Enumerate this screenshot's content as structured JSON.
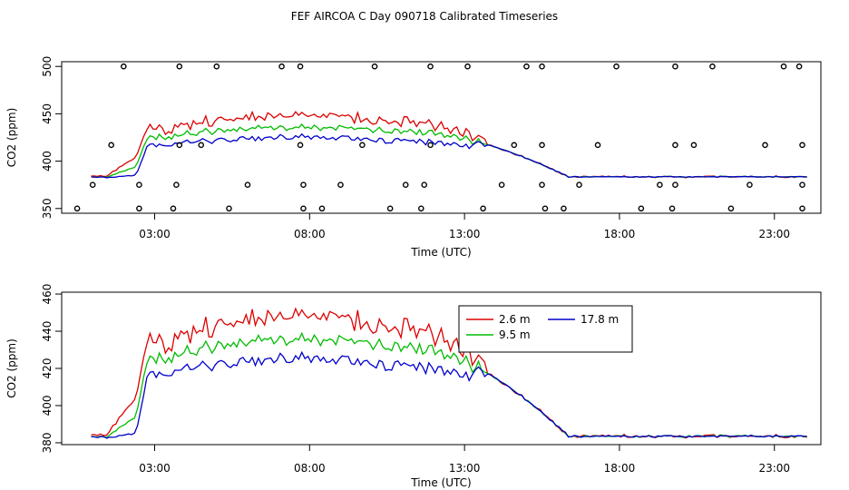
{
  "figure": {
    "title": "FEF AIRCOA C  Day 090718  Calibrated Timeseries"
  },
  "chart_data": [
    {
      "type": "line",
      "title": "",
      "xlabel": "Time (UTC)",
      "ylabel": "CO2 (ppm)",
      "xlim": [
        0,
        24.5
      ],
      "ylim": [
        345,
        505
      ],
      "xticks": [
        3,
        8,
        13,
        18,
        23
      ],
      "xtick_labels": [
        "03:00",
        "08:00",
        "13:00",
        "18:00",
        "23:00"
      ],
      "yticks": [
        350,
        400,
        450,
        500
      ],
      "ytick_labels": [
        "350",
        "400",
        "450",
        "500"
      ],
      "series": [
        {
          "name": "2.6 m",
          "color": "#dd0000"
        },
        {
          "name": "9.5 m",
          "color": "#00bb00"
        },
        {
          "name": "17.8 m",
          "color": "#0000cc"
        }
      ],
      "calibration_points": {
        "500": [
          2.0,
          3.8,
          5.0,
          7.1,
          7.7,
          10.1,
          11.9,
          13.1,
          15.0,
          15.5,
          17.9,
          19.8,
          21.0,
          23.3,
          23.8
        ],
        "417": [
          1.6,
          3.8,
          4.5,
          7.7,
          9.7,
          11.9,
          14.6,
          15.5,
          17.3,
          19.8,
          20.4,
          22.7,
          23.9
        ],
        "375": [
          1.0,
          2.5,
          3.7,
          6.0,
          7.8,
          9.0,
          11.1,
          11.7,
          14.2,
          15.5,
          16.7,
          19.3,
          19.8,
          22.2,
          23.9
        ],
        "350": [
          0.5,
          2.5,
          3.6,
          5.4,
          7.8,
          8.4,
          10.6,
          11.6,
          13.6,
          15.6,
          16.2,
          18.7,
          19.7,
          21.6,
          23.9
        ]
      }
    },
    {
      "type": "line",
      "title": "",
      "xlabel": "Time (UTC)",
      "ylabel": "CO2 (ppm)",
      "xlim": [
        0,
        24.5
      ],
      "ylim": [
        379,
        461
      ],
      "xticks": [
        3,
        8,
        13,
        18,
        23
      ],
      "xtick_labels": [
        "03:00",
        "08:00",
        "13:00",
        "18:00",
        "23:00"
      ],
      "yticks": [
        380,
        400,
        420,
        440,
        460
      ],
      "ytick_labels": [
        "380",
        "400",
        "420",
        "440",
        "460"
      ],
      "legend": {
        "position": "top-right",
        "entries": [
          "2.6 m",
          "17.8 m",
          "9.5 m"
        ]
      },
      "series": [
        {
          "name": "2.6 m",
          "color": "#dd0000"
        },
        {
          "name": "9.5 m",
          "color": "#00bb00"
        },
        {
          "name": "17.8 m",
          "color": "#0000cc"
        }
      ]
    }
  ]
}
